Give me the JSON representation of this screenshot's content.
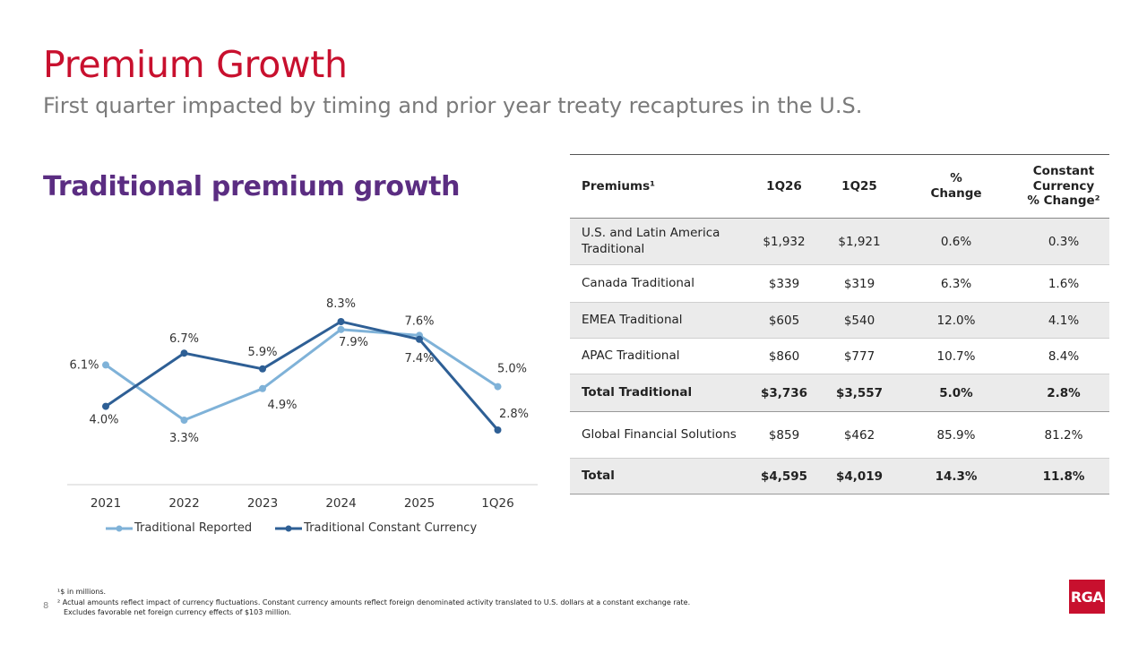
{
  "title": "Premium Growth",
  "subtitle": "First quarter impacted by timing and prior year treaty recaptures in the U.S.",
  "section_title": "Traditional premium growth",
  "chart_data": {
    "type": "line",
    "categories": [
      "2021",
      "2022",
      "2023",
      "2024",
      "2025",
      "1Q26"
    ],
    "series": [
      {
        "name": "Traditional Reported",
        "values": [
          6.1,
          3.3,
          4.9,
          7.9,
          7.6,
          5.0
        ],
        "labels": [
          "6.1%",
          "3.3%",
          "4.9%",
          "7.9%",
          "7.6%",
          "5.0%"
        ],
        "color": "#7fb2d8"
      },
      {
        "name": "Traditional Constant Currency",
        "values": [
          4.0,
          6.7,
          5.9,
          8.3,
          7.4,
          2.8
        ],
        "labels": [
          "4.0%",
          "6.7%",
          "5.9%",
          "8.3%",
          "7.4%",
          "2.8%"
        ],
        "color": "#2e5f95"
      }
    ],
    "ylim": [
      0,
      9
    ],
    "grid": false,
    "legend": "bottom"
  },
  "table": {
    "headers": [
      "Premiums¹",
      "1Q26",
      "1Q25",
      "%\nChange",
      "Constant\nCurrency\n% Change²"
    ],
    "rows": [
      {
        "cells": [
          "U.S. and Latin America Traditional",
          "$1,932",
          "$1,921",
          "0.6%",
          "0.3%"
        ],
        "shaded": true,
        "bold": false
      },
      {
        "cells": [
          "Canada Traditional",
          "$339",
          "$319",
          "6.3%",
          "1.6%"
        ],
        "shaded": false,
        "bold": false
      },
      {
        "cells": [
          "EMEA Traditional",
          "$605",
          "$540",
          "12.0%",
          "4.1%"
        ],
        "shaded": true,
        "bold": false
      },
      {
        "cells": [
          "APAC Traditional",
          "$860",
          "$777",
          "10.7%",
          "8.4%"
        ],
        "shaded": false,
        "bold": false
      },
      {
        "cells": [
          "Total Traditional",
          "$3,736",
          "$3,557",
          "5.0%",
          "2.8%"
        ],
        "shaded": true,
        "bold": true
      },
      {
        "cells": [
          "Global Financial Solutions",
          "$859",
          "$462",
          "85.9%",
          "81.2%"
        ],
        "shaded": false,
        "bold": false
      },
      {
        "cells": [
          "Total",
          "$4,595",
          "$4,019",
          "14.3%",
          "11.8%"
        ],
        "shaded": true,
        "bold": true
      }
    ]
  },
  "footnotes": [
    "¹$ in millions.",
    "² Actual amounts reflect impact of currency fluctuations. Constant currency amounts reflect foreign denominated activity translated to U.S. dollars at a constant exchange rate.",
    "Excludes favorable net foreign currency effects of $103 million."
  ],
  "page_number": "8",
  "logo_text": "RGA",
  "colors": {
    "brand_red": "#c8102e",
    "section_purple": "#5b2d82",
    "subtitle_gray": "#7a7a7a"
  }
}
